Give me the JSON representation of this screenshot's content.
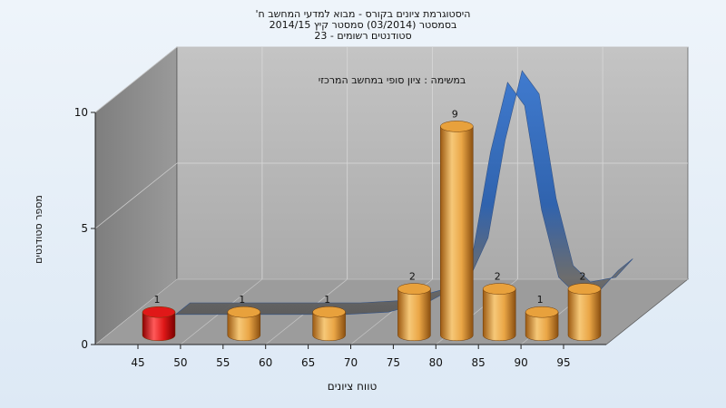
{
  "chart_data": {
    "type": "bar",
    "title_lines": [
      "היסטוגרמת ציונים בקורס - מבוא למדעי המחשב ח'",
      "בסמסטר  (03/2014)  סמסטר קיץ 2014/15",
      "סטודנטים רשומים - 23"
    ],
    "subtitle": "במשימה : ציון סופי במחשב המרכזי",
    "xlabel": "טווח ציונים",
    "ylabel": "מספר סטודנטים",
    "x_ticks": [
      "45",
      "50",
      "55",
      "60",
      "65",
      "70",
      "75",
      "80",
      "85",
      "90",
      "95"
    ],
    "y_ticks": [
      "0",
      "5",
      "10"
    ],
    "ylim": [
      0,
      10
    ],
    "bins": [
      45,
      55,
      65,
      75,
      80,
      85,
      90,
      95
    ],
    "values": [
      1,
      1,
      1,
      2,
      9,
      2,
      1,
      2
    ],
    "bar_colors": [
      "#e01818",
      "#e8a13c",
      "#e8a13c",
      "#e8a13c",
      "#e8a13c",
      "#e8a13c",
      "#e8a13c",
      "#e8a13c"
    ],
    "curve": {
      "x": [
        45,
        55,
        65,
        70,
        75,
        78,
        80,
        82,
        84,
        86,
        88,
        90,
        92,
        95,
        97
      ],
      "y": [
        0,
        0,
        0,
        0.1,
        0.6,
        1.2,
        2.8,
        7.0,
        10.0,
        9.0,
        4.5,
        1.6,
        0.9,
        1.1,
        1.9
      ]
    },
    "grid": true,
    "colors": {
      "curve_low": "#6e6e6e",
      "curve_high": "#3a74c9",
      "wall": "#8c8c8c",
      "back_wall": "#b8b8b8",
      "floor": "#9a9a9a"
    }
  }
}
